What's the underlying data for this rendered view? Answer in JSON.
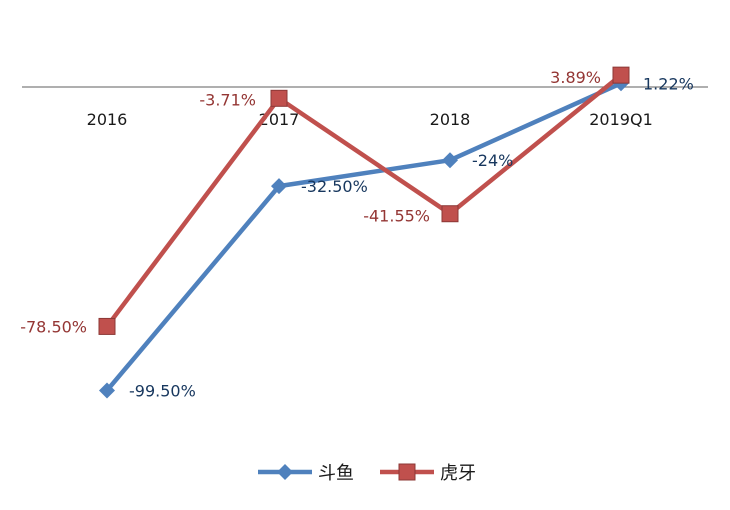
{
  "chart_data": {
    "type": "line",
    "categories": [
      "2016",
      "2017",
      "2018",
      "2019Q1"
    ],
    "series": [
      {
        "name": "斗鱼",
        "values": [
          -99.5,
          -32.5,
          -24,
          1.22
        ],
        "labels": [
          "-99.50%",
          "-32.50%",
          "-24%",
          "1.22%"
        ],
        "color": "#4F81BD",
        "label_color": "#17375E",
        "marker": "diamond"
      },
      {
        "name": "虎牙",
        "values": [
          -78.5,
          -3.71,
          -41.55,
          3.89
        ],
        "labels": [
          "-78.50%",
          "-3.71%",
          "-41.55%",
          "3.89%"
        ],
        "color": "#C0504D",
        "label_color": "#943634",
        "marker": "square"
      }
    ],
    "ylim": [
      -125,
      5
    ],
    "axis_color": "#7F7F7F",
    "grid": false,
    "legend_position": "bottom"
  }
}
